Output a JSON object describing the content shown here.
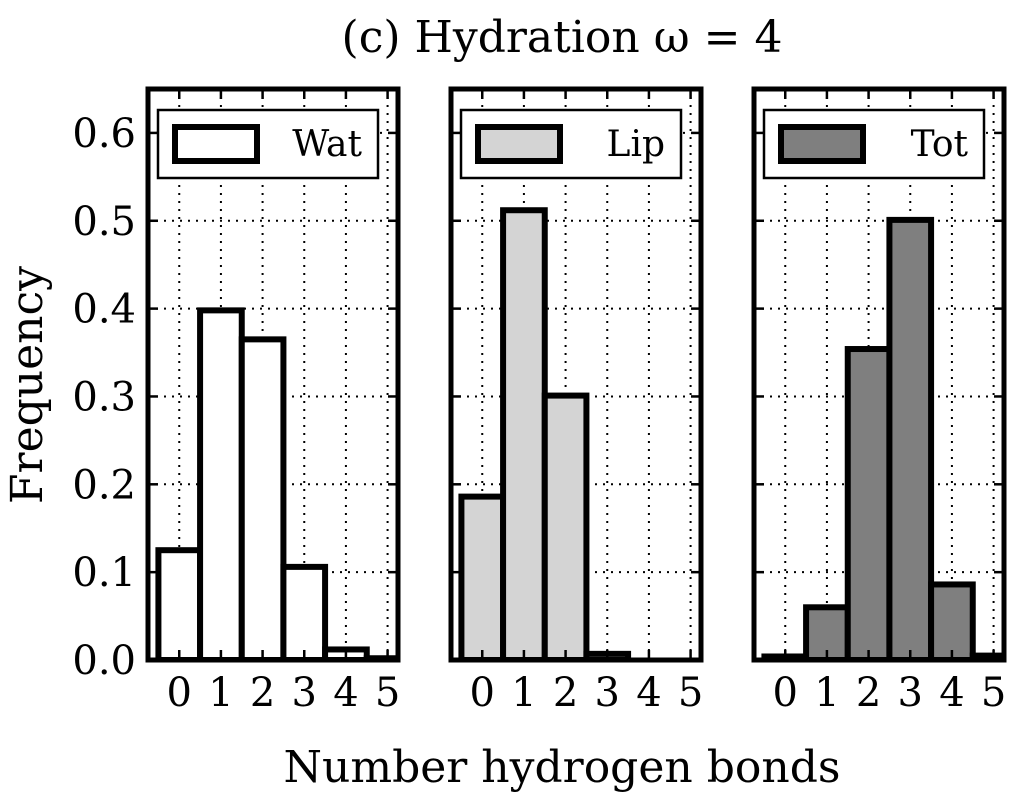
{
  "chart_data": {
    "type": "bar",
    "title": "(c) Hydration ω = 4",
    "xlabel": "Number hydrogen bonds",
    "ylabel": "Frequency",
    "ylim": [
      0,
      0.65
    ],
    "yticks": [
      "0.0",
      "0.1",
      "0.2",
      "0.3",
      "0.4",
      "0.5",
      "0.6"
    ],
    "categories": [
      "0",
      "1",
      "2",
      "3",
      "4",
      "5"
    ],
    "grid": true,
    "legend_position": "top",
    "panels": [
      {
        "legend": "Wat",
        "color": "#ffffff",
        "values": [
          0.125,
          0.398,
          0.365,
          0.106,
          0.012,
          0.002
        ]
      },
      {
        "legend": "Lip",
        "color": "#d4d4d4",
        "values": [
          0.186,
          0.512,
          0.301,
          0.007,
          0.0,
          0.0
        ]
      },
      {
        "legend": "Tot",
        "color": "#7f7f7f",
        "values": [
          0.004,
          0.06,
          0.354,
          0.501,
          0.086,
          0.005
        ]
      }
    ]
  }
}
